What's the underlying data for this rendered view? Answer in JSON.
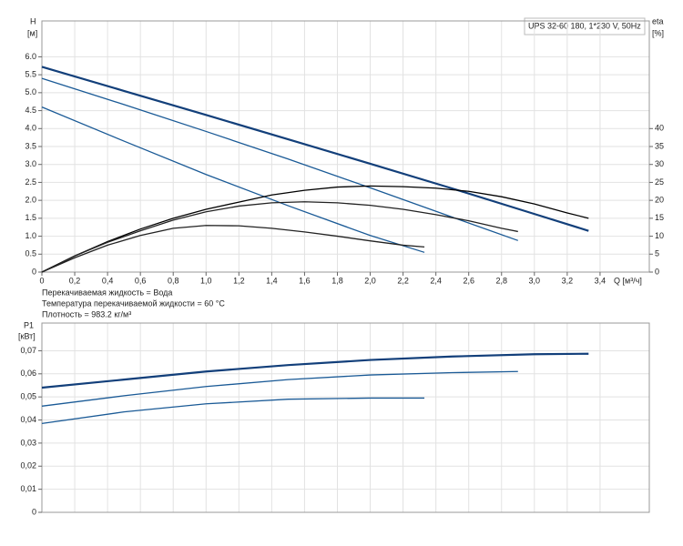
{
  "chart_data": [
    {
      "type": "line",
      "title": "UPS 32-60 180, 1*230 V, 50Hz",
      "y_label": "H",
      "y_unit": "[м]",
      "y2_label": "eta",
      "y2_unit": "[%]",
      "x_label": "Q [м³/ч]",
      "annotations": [
        "Перекачиваемая жидкость = Вода",
        "Температура перекачиваемой жидкости = 60 °C",
        "Плотность = 983.2 кг/м³"
      ],
      "xlim": [
        0,
        3.7
      ],
      "xticks": [
        0,
        {
          "value": 0.2,
          "label": "0,2"
        },
        {
          "value": 0.4,
          "label": "0,4"
        },
        {
          "value": 0.6,
          "label": "0,6"
        },
        {
          "value": 0.8,
          "label": "0,8"
        },
        {
          "value": 1,
          "label": "1,0"
        },
        {
          "value": 1.2,
          "label": "1,2"
        },
        {
          "value": 1.4,
          "label": "1,4"
        },
        {
          "value": 1.6,
          "label": "1,6"
        },
        {
          "value": 1.8,
          "label": "1,8"
        },
        {
          "value": 2,
          "label": "2,0"
        },
        {
          "value": 2.2,
          "label": "2,2"
        },
        {
          "value": 2.4,
          "label": "2,4"
        },
        {
          "value": 2.6,
          "label": "2,6"
        },
        {
          "value": 2.8,
          "label": "2,8"
        },
        {
          "value": 3,
          "label": "3,0"
        },
        {
          "value": 3.2,
          "label": "3,2"
        },
        {
          "value": 3.4,
          "label": "3,4"
        }
      ],
      "ylim": [
        0,
        7
      ],
      "yticks": [
        0,
        0.5,
        {
          "value": 1,
          "label": "1.0"
        },
        1.5,
        {
          "value": 2,
          "label": "2.0"
        },
        2.5,
        {
          "value": 3,
          "label": "3.0"
        },
        3.5,
        {
          "value": 4,
          "label": "4.0"
        },
        4.5,
        {
          "value": 5,
          "label": "5.0"
        },
        5.5,
        {
          "value": 6,
          "label": "6.0"
        }
      ],
      "y2lim": [
        0,
        70
      ],
      "y2ticks": [
        0,
        5,
        10,
        15,
        20,
        25,
        30,
        35,
        40
      ],
      "grid": true,
      "series": [
        {
          "color": "#123f7a",
          "x": [
            0,
            0.5,
            1,
            1.5,
            2,
            2.5,
            3,
            3.33
          ],
          "values": [
            5.72,
            5.05,
            4.38,
            3.7,
            3.02,
            2.33,
            1.62,
            1.15
          ]
        },
        {
          "color": "#1a5a96",
          "x": [
            0,
            0.5,
            1,
            1.5,
            2,
            2.5,
            2.9
          ],
          "values": [
            5.4,
            4.67,
            3.92,
            3.15,
            2.35,
            1.53,
            0.88
          ]
        },
        {
          "color": "#1a5a96",
          "x": [
            0,
            0.5,
            1,
            1.5,
            2,
            2.33
          ],
          "values": [
            4.6,
            3.65,
            2.72,
            1.85,
            1.02,
            0.55
          ]
        },
        {
          "color": "#000000",
          "axis": "y2",
          "x": [
            0,
            0.2,
            0.4,
            0.6,
            0.8,
            1,
            1.2,
            1.4,
            1.6,
            1.8,
            2,
            2.2,
            2.4,
            2.6,
            2.8,
            3,
            3.2,
            3.33
          ],
          "values": [
            0,
            4.5,
            8.5,
            12,
            15,
            17.5,
            19.5,
            21.5,
            22.8,
            23.7,
            24,
            23.8,
            23.4,
            22.5,
            21,
            19,
            16.5,
            15
          ]
        },
        {
          "color": "#222222",
          "axis": "y2",
          "x": [
            0,
            0.2,
            0.4,
            0.6,
            0.8,
            1,
            1.2,
            1.4,
            1.6,
            1.8,
            2,
            2.2,
            2.4,
            2.6,
            2.8,
            2.9
          ],
          "values": [
            0,
            4.5,
            8.3,
            11.5,
            14.5,
            16.8,
            18.4,
            19.3,
            19.6,
            19.3,
            18.6,
            17.5,
            16,
            14.3,
            12.2,
            11.3
          ]
        },
        {
          "color": "#222222",
          "axis": "y2",
          "x": [
            0,
            0.2,
            0.4,
            0.6,
            0.8,
            1,
            1.2,
            1.4,
            1.6,
            1.8,
            2,
            2.2,
            2.33
          ],
          "values": [
            0,
            4,
            7.5,
            10.2,
            12.2,
            13,
            12.9,
            12.2,
            11.2,
            10,
            8.7,
            7.5,
            7
          ]
        }
      ]
    },
    {
      "type": "line",
      "y_label": "P1",
      "y_unit": "[кВт]",
      "xlim": [
        0,
        3.7
      ],
      "ylim": [
        0,
        0.082
      ],
      "yticks": [
        0,
        {
          "value": 0.01,
          "label": "0,01"
        },
        {
          "value": 0.02,
          "label": "0,02"
        },
        {
          "value": 0.03,
          "label": "0,03"
        },
        {
          "value": 0.04,
          "label": "0,04"
        },
        {
          "value": 0.05,
          "label": "0,05"
        },
        {
          "value": 0.06,
          "label": "0,06"
        },
        {
          "value": 0.07,
          "label": "0,07"
        }
      ],
      "grid": true,
      "series": [
        {
          "color": "#123f7a",
          "x": [
            0,
            0.5,
            1,
            1.5,
            2,
            2.5,
            3,
            3.33
          ],
          "values": [
            0.054,
            0.0575,
            0.061,
            0.0638,
            0.066,
            0.0675,
            0.0685,
            0.0687
          ]
        },
        {
          "color": "#1a5a96",
          "x": [
            0,
            0.5,
            1,
            1.5,
            2,
            2.5,
            2.9
          ],
          "values": [
            0.046,
            0.0505,
            0.0545,
            0.0575,
            0.0595,
            0.0605,
            0.061
          ]
        },
        {
          "color": "#1a5a96",
          "x": [
            0,
            0.5,
            1,
            1.5,
            2,
            2.33
          ],
          "values": [
            0.0385,
            0.0435,
            0.047,
            0.049,
            0.0495,
            0.0495
          ]
        }
      ]
    }
  ]
}
